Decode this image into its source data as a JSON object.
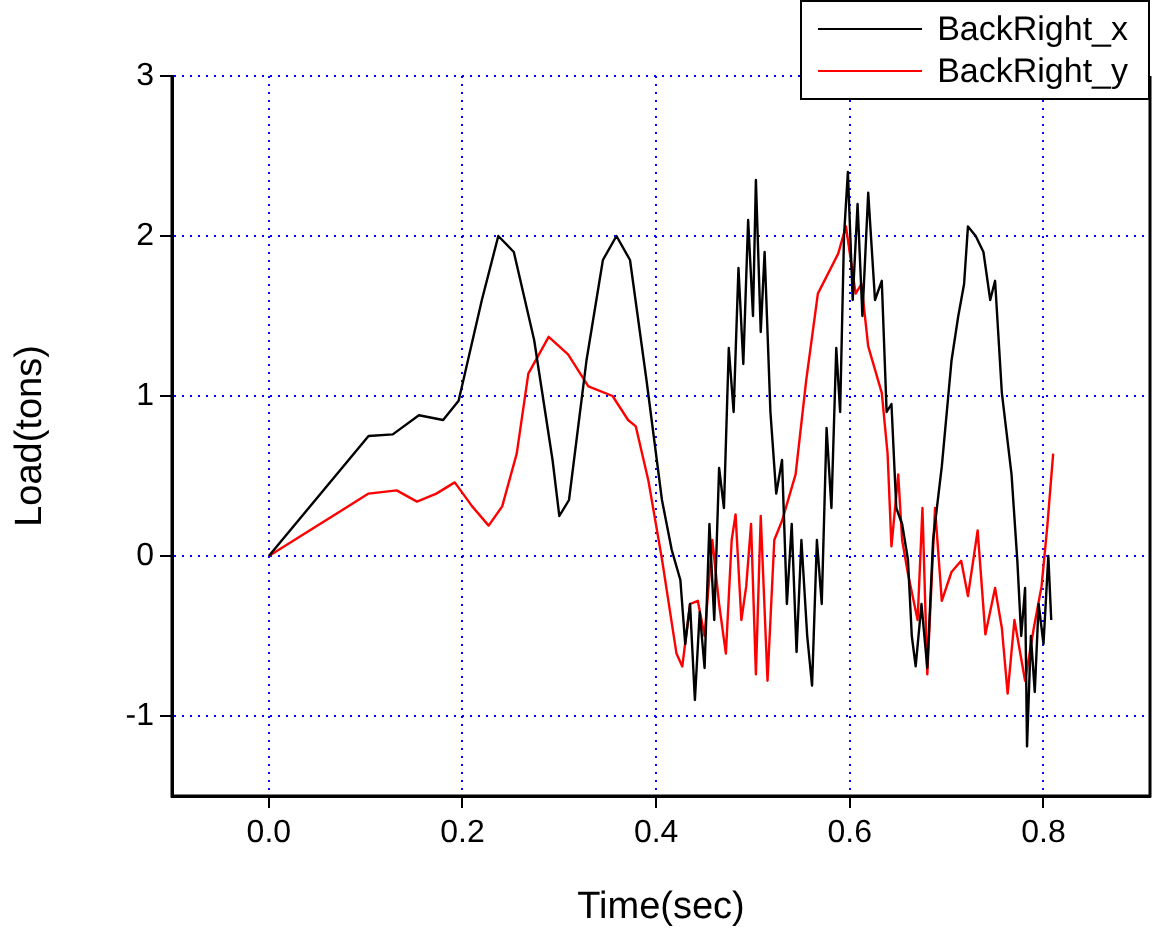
{
  "chart_data": {
    "type": "line",
    "xlabel": "Time(sec)",
    "ylabel": "Load(tons)",
    "xlim": [
      -0.1,
      0.91
    ],
    "ylim": [
      -1.5,
      3
    ],
    "xticks": [
      {
        "value": 0,
        "label": "0.0"
      },
      {
        "value": 0.2,
        "label": "0.2"
      },
      {
        "value": 0.4,
        "label": "0.4"
      },
      {
        "value": 0.6,
        "label": "0.6"
      },
      {
        "value": 0.8,
        "label": "0.8"
      }
    ],
    "yticks": [
      -1,
      0,
      1,
      2,
      3
    ],
    "grid": true,
    "legend": "top right",
    "marker": "none",
    "line_style": "solid",
    "series": [
      {
        "name": "BackRight_x",
        "color": "#000000",
        "x": [
          0,
          0.103,
          0.128,
          0.155,
          0.18,
          0.196,
          0.22,
          0.237,
          0.253,
          0.274,
          0.293,
          0.3,
          0.31,
          0.328,
          0.345,
          0.359,
          0.373,
          0.39,
          0.406,
          0.416,
          0.425,
          0.43,
          0.435,
          0.44,
          0.445,
          0.45,
          0.455,
          0.46,
          0.465,
          0.47,
          0.475,
          0.48,
          0.485,
          0.49,
          0.495,
          0.5,
          0.503,
          0.508,
          0.512,
          0.518,
          0.524,
          0.53,
          0.535,
          0.54,
          0.545,
          0.55,
          0.556,
          0.561,
          0.566,
          0.571,
          0.576,
          0.581,
          0.586,
          0.59,
          0.594,
          0.598,
          0.603,
          0.608,
          0.613,
          0.619,
          0.626,
          0.633,
          0.638,
          0.643,
          0.648,
          0.654,
          0.66,
          0.664,
          0.668,
          0.674,
          0.68,
          0.686,
          0.695,
          0.705,
          0.712,
          0.718,
          0.722,
          0.73,
          0.738,
          0.745,
          0.75,
          0.757,
          0.767,
          0.773,
          0.777,
          0.781,
          0.783,
          0.787,
          0.791,
          0.795,
          0.8,
          0.805,
          0.808
        ],
        "values": [
          0,
          0.75,
          0.76,
          0.88,
          0.85,
          0.97,
          1.6,
          2.0,
          1.9,
          1.35,
          0.6,
          0.25,
          0.35,
          1.22,
          1.85,
          2.0,
          1.85,
          1.1,
          0.35,
          0.04,
          -0.15,
          -0.55,
          -0.3,
          -0.9,
          -0.35,
          -0.7,
          0.2,
          -0.4,
          0.55,
          0.3,
          1.3,
          0.9,
          1.8,
          1.2,
          2.1,
          1.5,
          2.35,
          1.4,
          1.9,
          0.9,
          0.39,
          0.6,
          -0.3,
          0.2,
          -0.6,
          0.1,
          -0.5,
          -0.81,
          0.1,
          -0.3,
          0.8,
          0.3,
          1.3,
          0.9,
          2.0,
          2.4,
          1.6,
          2.2,
          1.5,
          2.27,
          1.6,
          1.72,
          0.9,
          0.95,
          0.3,
          0.2,
          -0.02,
          -0.5,
          -0.69,
          -0.3,
          -0.7,
          0.1,
          0.56,
          1.22,
          1.5,
          1.7,
          2.06,
          2.0,
          1.9,
          1.6,
          1.72,
          1.02,
          0.51,
          -0.03,
          -0.5,
          -0.2,
          -1.19,
          -0.5,
          -0.85,
          -0.3,
          -0.55,
          0.0,
          -0.4
        ]
      },
      {
        "name": "BackRight_y",
        "color": "#ff0000",
        "x": [
          0,
          0.103,
          0.132,
          0.153,
          0.173,
          0.192,
          0.21,
          0.227,
          0.241,
          0.256,
          0.268,
          0.289,
          0.309,
          0.33,
          0.355,
          0.371,
          0.379,
          0.392,
          0.406,
          0.421,
          0.427,
          0.435,
          0.443,
          0.45,
          0.458,
          0.465,
          0.472,
          0.478,
          0.482,
          0.488,
          0.493,
          0.498,
          0.503,
          0.508,
          0.515,
          0.522,
          0.53,
          0.544,
          0.555,
          0.567,
          0.588,
          0.596,
          0.606,
          0.612,
          0.619,
          0.633,
          0.639,
          0.643,
          0.65,
          0.654,
          0.66,
          0.67,
          0.675,
          0.68,
          0.688,
          0.695,
          0.705,
          0.715,
          0.722,
          0.732,
          0.74,
          0.75,
          0.757,
          0.763,
          0.77,
          0.781,
          0.79,
          0.798,
          0.804,
          0.81
        ],
        "values": [
          0,
          0.39,
          0.41,
          0.34,
          0.39,
          0.46,
          0.31,
          0.19,
          0.31,
          0.64,
          1.14,
          1.37,
          1.26,
          1.06,
          1.0,
          0.85,
          0.81,
          0.47,
          -0.02,
          -0.61,
          -0.69,
          -0.3,
          -0.28,
          -0.5,
          0.1,
          -0.3,
          -0.61,
          0.1,
          0.26,
          -0.4,
          -0.19,
          0.2,
          -0.74,
          0.25,
          -0.78,
          0.1,
          0.22,
          0.51,
          1.1,
          1.64,
          1.89,
          2.06,
          1.64,
          1.7,
          1.31,
          1.02,
          0.64,
          0.06,
          0.51,
          0.1,
          -0.11,
          -0.4,
          0.3,
          -0.74,
          0.3,
          -0.28,
          -0.1,
          -0.03,
          -0.25,
          0.16,
          -0.49,
          -0.2,
          -0.45,
          -0.86,
          -0.4,
          -0.78,
          -0.45,
          -0.19,
          0.19,
          0.64
        ]
      }
    ]
  }
}
